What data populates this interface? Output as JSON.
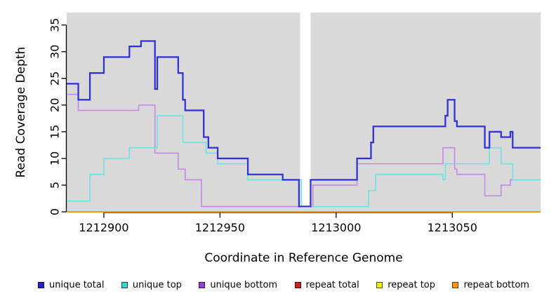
{
  "figure": {
    "plot_background": "#d9d9d9",
    "gap_band": {
      "from": 1212984.5,
      "to": 1212989,
      "color": "#ffffff"
    }
  },
  "axes": {
    "y_ticks": [
      {
        "value": 0,
        "label": "0"
      },
      {
        "value": 5,
        "label": "5"
      },
      {
        "value": 10,
        "label": "10"
      },
      {
        "value": 15,
        "label": "15"
      },
      {
        "value": 20,
        "label": "20"
      },
      {
        "value": 25,
        "label": "25"
      },
      {
        "value": 30,
        "label": "30"
      },
      {
        "value": 35,
        "label": "35"
      }
    ],
    "x_ticks": [
      {
        "value": 1212900,
        "label": "1212900"
      },
      {
        "value": 1212950,
        "label": "1212950"
      },
      {
        "value": 1213000,
        "label": "1213000"
      },
      {
        "value": 1213050,
        "label": "1213050"
      }
    ]
  },
  "chart_data": {
    "type": "line",
    "step": "post",
    "title": "",
    "xlabel": "Coordinate in Reference Genome",
    "ylabel": "Read Coverage Depth",
    "xlim": [
      1212884,
      1213088
    ],
    "ylim": [
      0,
      37.32
    ],
    "grid": false,
    "legend_position": "bottom",
    "series": [
      {
        "name": "unique total",
        "color": "#3030d8",
        "legend_color": "#2222cc",
        "width": 2.25,
        "points": [
          [
            1212884,
            24
          ],
          [
            1212889,
            21
          ],
          [
            1212894,
            26
          ],
          [
            1212900,
            29
          ],
          [
            1212911,
            31
          ],
          [
            1212916,
            32
          ],
          [
            1212922,
            23
          ],
          [
            1212923,
            29
          ],
          [
            1212932,
            26
          ],
          [
            1212934,
            21
          ],
          [
            1212935,
            19
          ],
          [
            1212943,
            14
          ],
          [
            1212945,
            12
          ],
          [
            1212949,
            10
          ],
          [
            1212962,
            7
          ],
          [
            1212977,
            6
          ],
          [
            1212984,
            1
          ],
          [
            1212989,
            6
          ],
          [
            1213009,
            10
          ],
          [
            1213015,
            13
          ],
          [
            1213016,
            16
          ],
          [
            1213047,
            18
          ],
          [
            1213048,
            21
          ],
          [
            1213051,
            17
          ],
          [
            1213052,
            16
          ],
          [
            1213064,
            12
          ],
          [
            1213066,
            15
          ],
          [
            1213071,
            14
          ],
          [
            1213075,
            15
          ],
          [
            1213076,
            12
          ]
        ]
      },
      {
        "name": "unique top",
        "color": "#6ce2e2",
        "legend_color": "#3ed4d4",
        "width": 1.6,
        "points": [
          [
            1212884,
            2
          ],
          [
            1212894,
            7
          ],
          [
            1212900,
            10
          ],
          [
            1212911,
            12
          ],
          [
            1212923,
            18
          ],
          [
            1212934,
            13
          ],
          [
            1212944,
            11
          ],
          [
            1212949,
            9
          ],
          [
            1212962,
            6
          ],
          [
            1212985,
            1
          ],
          [
            1213014,
            4
          ],
          [
            1213017,
            7
          ],
          [
            1213046,
            6
          ],
          [
            1213047,
            9
          ],
          [
            1213066,
            12
          ],
          [
            1213071,
            9
          ],
          [
            1213076,
            6
          ]
        ]
      },
      {
        "name": "unique bottom",
        "color": "#c489e6",
        "legend_color": "#9b3fd1",
        "width": 1.6,
        "points": [
          [
            1212884,
            22
          ],
          [
            1212889,
            19
          ],
          [
            1212915,
            20
          ],
          [
            1212922,
            11
          ],
          [
            1212932,
            8
          ],
          [
            1212935,
            6
          ],
          [
            1212942,
            1
          ],
          [
            1212990,
            5
          ],
          [
            1213009,
            9
          ],
          [
            1213046,
            12
          ],
          [
            1213051,
            8
          ],
          [
            1213052,
            7
          ],
          [
            1213064,
            3
          ],
          [
            1213071,
            5
          ],
          [
            1213075,
            6
          ]
        ]
      },
      {
        "name": "repeat total",
        "color": "#c62222",
        "legend_color": "#c62222",
        "width": 1.6,
        "points": [
          [
            1212884,
            0
          ]
        ]
      },
      {
        "name": "repeat top",
        "color": "#f2ea00",
        "legend_color": "#f2ea00",
        "width": 1.6,
        "points": [
          [
            1212884,
            0
          ]
        ]
      },
      {
        "name": "repeat bottom",
        "color": "#ff9800",
        "legend_color": "#ff9800",
        "width": 2,
        "points": [
          [
            1212884,
            0
          ]
        ]
      }
    ]
  }
}
